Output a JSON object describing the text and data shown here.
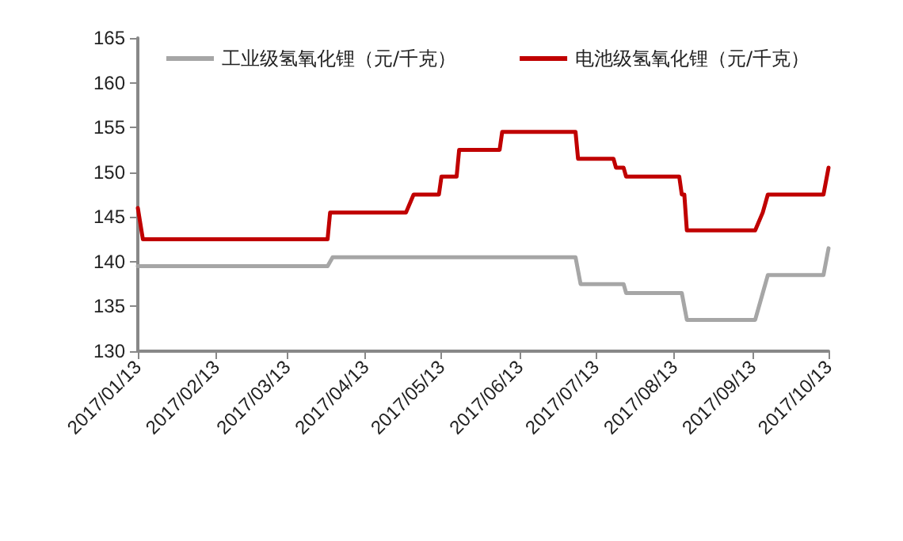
{
  "chart_data": {
    "type": "line",
    "xlim": [
      "2017-01-13",
      "2017-10-13"
    ],
    "xticks": [
      {
        "value": "2017-01-13",
        "label": "2017/01/13"
      },
      {
        "value": "2017-02-13",
        "label": "2017/02/13"
      },
      {
        "value": "2017-03-13",
        "label": "2017/03/13"
      },
      {
        "value": "2017-04-13",
        "label": "2017/04/13"
      },
      {
        "value": "2017-05-13",
        "label": "2017/05/13"
      },
      {
        "value": "2017-06-13",
        "label": "2017/06/13"
      },
      {
        "value": "2017-07-13",
        "label": "2017/07/13"
      },
      {
        "value": "2017-08-13",
        "label": "2017/08/13"
      },
      {
        "value": "2017-09-13",
        "label": "2017/09/13"
      },
      {
        "value": "2017-10-13",
        "label": "2017/10/13"
      }
    ],
    "ylim": [
      130,
      165
    ],
    "yticks": [
      130,
      135,
      140,
      145,
      150,
      155,
      160,
      165
    ],
    "grid": false,
    "legend": "top",
    "marker": "none",
    "line_style": "solid",
    "series": [
      {
        "name": "工业级氢氧化锂（元/千克）",
        "color": "#a6a6a6",
        "x": [
          "2017-01-13",
          "2017-03-29",
          "2017-03-31",
          "2017-07-05",
          "2017-07-07",
          "2017-07-24",
          "2017-07-25",
          "2017-08-16",
          "2017-08-18",
          "2017-09-14",
          "2017-09-17",
          "2017-09-19",
          "2017-10-11",
          "2017-10-13"
        ],
        "values": [
          139.5,
          139.5,
          140.5,
          140.5,
          137.5,
          137.5,
          136.5,
          136.5,
          133.5,
          133.5,
          136.5,
          138.5,
          138.5,
          141.5
        ]
      },
      {
        "name": "电池级氢氧化锂（元/千克）",
        "color": "#c00000",
        "x": [
          "2017-01-13",
          "2017-01-15",
          "2017-03-29",
          "2017-03-30",
          "2017-04-29",
          "2017-05-02",
          "2017-05-12",
          "2017-05-13",
          "2017-05-19",
          "2017-05-20",
          "2017-06-05",
          "2017-06-06",
          "2017-07-05",
          "2017-07-06",
          "2017-07-20",
          "2017-07-21",
          "2017-07-24",
          "2017-07-25",
          "2017-08-15",
          "2017-08-16",
          "2017-08-17",
          "2017-08-18",
          "2017-09-14",
          "2017-09-17",
          "2017-09-19",
          "2017-10-11",
          "2017-10-13"
        ],
        "values": [
          146,
          142.5,
          142.5,
          145.5,
          145.5,
          147.5,
          147.5,
          149.5,
          149.5,
          152.5,
          152.5,
          154.5,
          154.5,
          151.5,
          151.5,
          150.5,
          150.5,
          149.5,
          149.5,
          147.5,
          147.5,
          143.5,
          143.5,
          145.5,
          147.5,
          147.5,
          150.5
        ]
      }
    ]
  }
}
